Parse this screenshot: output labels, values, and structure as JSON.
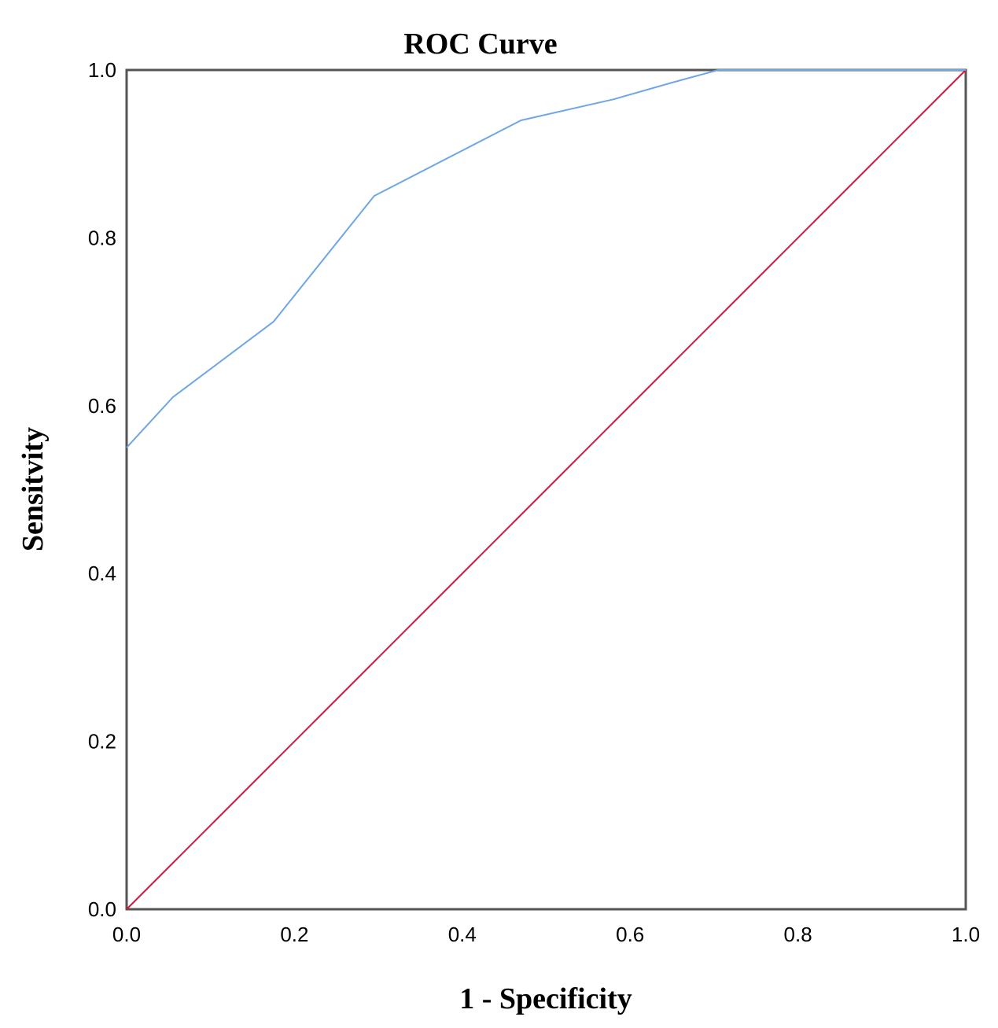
{
  "chart_data": {
    "type": "line",
    "title": "ROC Curve",
    "xlabel": "1 - Specificity",
    "ylabel": "Sensitvity",
    "xlim": [
      0,
      1
    ],
    "ylim": [
      0,
      1
    ],
    "x_ticks": [
      "0.0",
      "0.2",
      "0.4",
      "0.6",
      "0.8",
      "1.0"
    ],
    "y_ticks": [
      "0.0",
      "0.2",
      "0.4",
      "0.6",
      "0.8",
      "1.0"
    ],
    "x_tick_values": [
      0,
      0.2,
      0.4,
      0.6,
      0.8,
      1.0
    ],
    "y_tick_values": [
      0,
      0.2,
      0.4,
      0.6,
      0.8,
      1.0
    ],
    "grid": false,
    "series": [
      {
        "color": "#6ea6e6",
        "x": [
          0.0,
          0.055,
          0.175,
          0.295,
          0.47,
          0.58,
          0.65,
          0.705,
          1.0
        ],
        "y": [
          0.55,
          0.61,
          0.7,
          0.85,
          0.94,
          0.965,
          0.985,
          1.0,
          1.0
        ]
      },
      {
        "color": "#e0103a",
        "x": [
          0,
          1
        ],
        "y": [
          0,
          1
        ]
      }
    ]
  }
}
